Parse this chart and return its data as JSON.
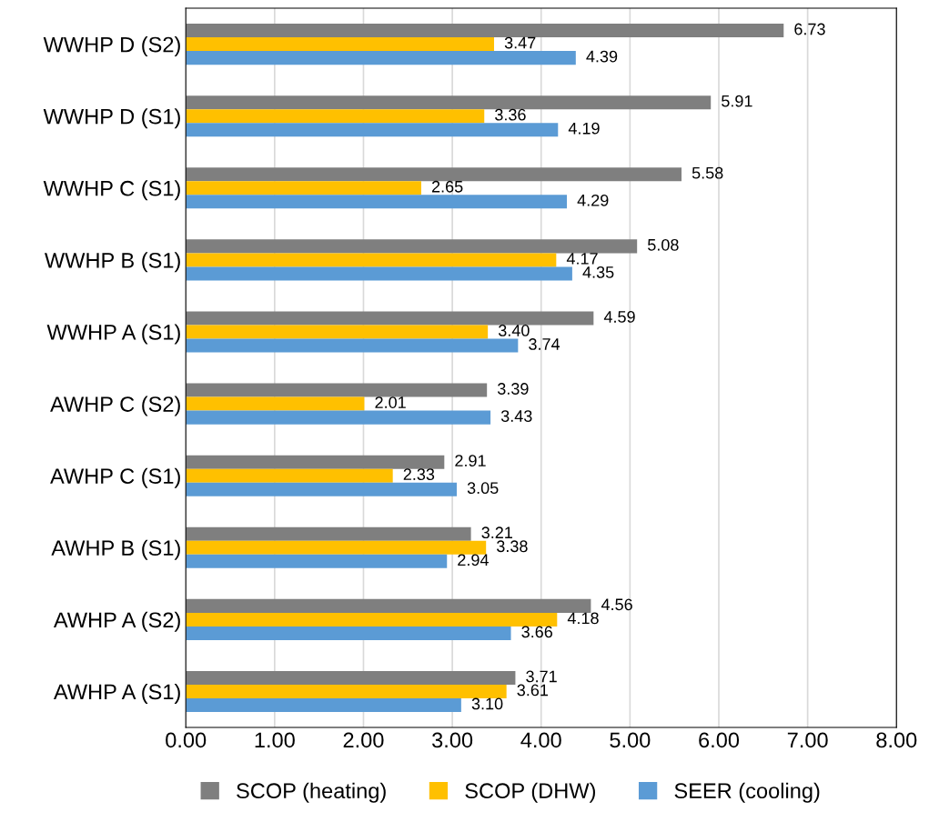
{
  "chart_data": {
    "type": "bar",
    "orientation": "horizontal",
    "categories": [
      "WWHP D (S2)",
      "WWHP D (S1)",
      "WWHP C (S1)",
      "WWHP B (S1)",
      "WWHP A (S1)",
      "AWHP C (S2)",
      "AWHP C (S1)",
      "AWHP B (S1)",
      "AWHP A (S2)",
      "AWHP A (S1)"
    ],
    "series": [
      {
        "name": "SCOP (heating)",
        "color": "#7f7f7f",
        "values": [
          6.73,
          5.91,
          5.58,
          5.08,
          4.59,
          3.39,
          2.91,
          3.21,
          4.56,
          3.71
        ],
        "value_labels": [
          "6.73",
          "5.91",
          "5.58",
          "5.08",
          "4.59",
          "3.39",
          "2.91",
          "3.21",
          "4.56",
          "3.71"
        ]
      },
      {
        "name": "SCOP (DHW)",
        "color": "#ffc000",
        "values": [
          3.47,
          3.36,
          2.65,
          4.17,
          3.4,
          2.01,
          2.33,
          3.38,
          4.18,
          3.61
        ],
        "value_labels": [
          "3.47",
          "3.36",
          "2.65",
          "4.17",
          "3.40",
          "2.01",
          "2.33",
          "3.38",
          "4.18",
          "3.61"
        ]
      },
      {
        "name": "SEER (cooling)",
        "color": "#5b9bd5",
        "values": [
          4.39,
          4.19,
          4.29,
          4.35,
          3.74,
          3.43,
          3.05,
          2.94,
          3.66,
          3.1
        ],
        "value_labels": [
          "4.39",
          "4.19",
          "4.29",
          "4.35",
          "3.74",
          "3.43",
          "3.05",
          "2.94",
          "3.66",
          "3.10"
        ]
      }
    ],
    "xlim": [
      0,
      8
    ],
    "xticks": [
      {
        "value": 0,
        "label": "0.00"
      },
      {
        "value": 1,
        "label": "1.00"
      },
      {
        "value": 2,
        "label": "2.00"
      },
      {
        "value": 3,
        "label": "3.00"
      },
      {
        "value": 4,
        "label": "4.00"
      },
      {
        "value": 5,
        "label": "5.00"
      },
      {
        "value": 6,
        "label": "6.00"
      },
      {
        "value": 7,
        "label": "7.00"
      },
      {
        "value": 8,
        "label": "8.00"
      }
    ],
    "grid": "x",
    "legend": "bottom"
  }
}
